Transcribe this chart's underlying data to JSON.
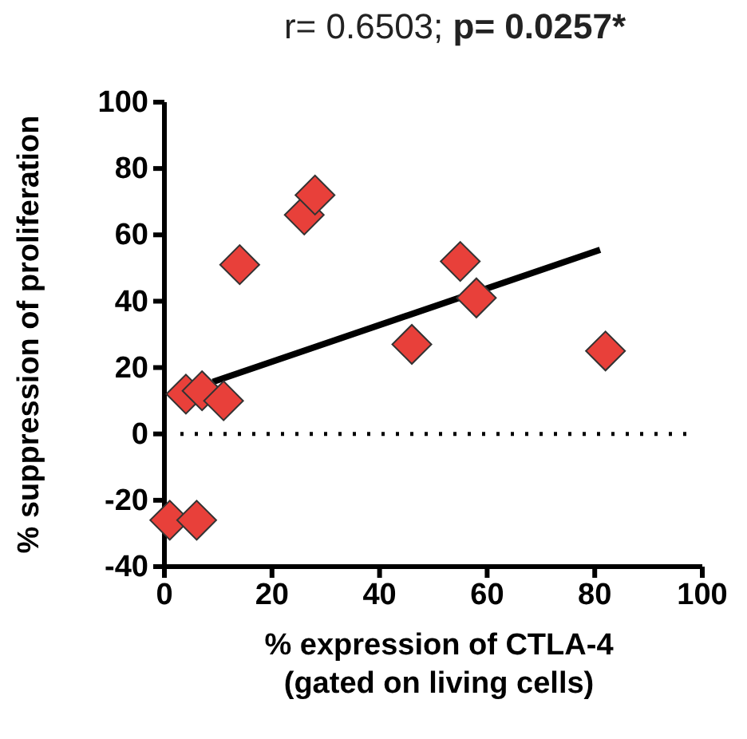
{
  "chart_data": {
    "type": "scatter",
    "title": "r= 0.6503; p= 0.0257*",
    "xlabel": "% expression of CTLA-4\n(gated on living cells)",
    "ylabel": "% suppression of proliferation",
    "xlim": [
      0,
      100
    ],
    "xticks": [
      0,
      20,
      40,
      60,
      80,
      100
    ],
    "ylim": [
      -40,
      100
    ],
    "yticks": [
      -40,
      -20,
      0,
      20,
      40,
      60,
      80,
      100
    ],
    "grid": false,
    "series": [
      {
        "marker": "diamond",
        "color": "#e8403a",
        "x": [
          1,
          6,
          4,
          7,
          11,
          14,
          26,
          28,
          46,
          55,
          58,
          82
        ],
        "values": [
          -26,
          -26,
          12,
          13,
          10,
          51,
          66,
          72,
          27,
          52,
          41,
          25
        ]
      },
      {
        "type": "line",
        "color": "#000000",
        "x": [
          9,
          81
        ],
        "values": [
          15.7,
          55.5
        ],
        "line_style": "solid"
      }
    ],
    "ref_lines": [
      {
        "axis": "y",
        "value": 0,
        "line_style": "dotted",
        "color": "#000000"
      }
    ]
  }
}
